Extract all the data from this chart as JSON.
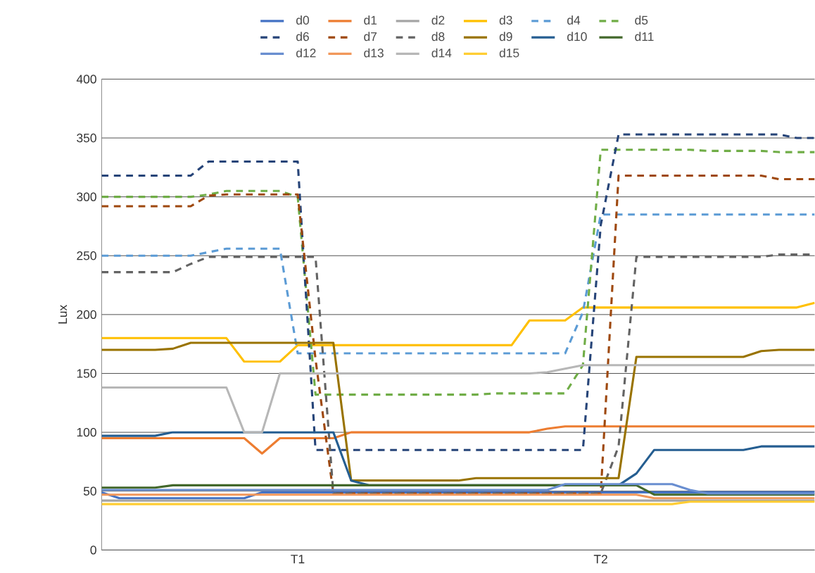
{
  "chart_data": {
    "type": "line",
    "ylabel": "Lux",
    "categories": [
      null,
      null,
      null,
      null,
      null,
      null,
      null,
      null,
      null,
      null,
      null,
      "T1",
      null,
      null,
      null,
      null,
      null,
      null,
      null,
      null,
      null,
      null,
      null,
      null,
      null,
      null,
      null,
      null,
      "T2",
      null,
      null,
      null,
      null,
      null,
      null,
      null,
      null,
      null,
      null,
      null,
      null
    ],
    "ylim": [
      0,
      400
    ],
    "yticks": [
      0,
      50,
      100,
      150,
      200,
      250,
      300,
      350,
      400
    ],
    "grid": "y",
    "legend": "top",
    "marker": "none",
    "series": [
      {
        "name": "d0",
        "color": "#4472c4",
        "line_style": "solid",
        "values": [
          49,
          44,
          44,
          44,
          44,
          44,
          44,
          44,
          44,
          49,
          49,
          49,
          49,
          49,
          49,
          49,
          49,
          49,
          49,
          49,
          49,
          49,
          49,
          49,
          49,
          49,
          49,
          49,
          49,
          49,
          49,
          49,
          49,
          49,
          49,
          49,
          49,
          49,
          49,
          49,
          49
        ]
      },
      {
        "name": "d1",
        "color": "#ed7d31",
        "line_style": "solid",
        "values": [
          95,
          95,
          95,
          95,
          95,
          95,
          95,
          95,
          95,
          82,
          95,
          95,
          95,
          95,
          100,
          100,
          100,
          100,
          100,
          100,
          100,
          100,
          100,
          100,
          100,
          103,
          105,
          105,
          105,
          105,
          105,
          105,
          105,
          105,
          105,
          105,
          105,
          105,
          105,
          105,
          105
        ]
      },
      {
        "name": "d2",
        "color": "#a5a5a5",
        "line_style": "solid",
        "values": [
          42,
          42,
          42,
          42,
          42,
          42,
          42,
          42,
          42,
          42,
          42,
          42,
          42,
          42,
          42,
          42,
          42,
          42,
          42,
          42,
          42,
          42,
          42,
          42,
          42,
          42,
          42,
          42,
          42,
          42,
          42,
          42,
          42,
          42,
          42,
          42,
          42,
          42,
          42,
          42,
          42
        ]
      },
      {
        "name": "d3",
        "color": "#ffc000",
        "line_style": "solid",
        "values": [
          180,
          180,
          180,
          180,
          180,
          180,
          180,
          180,
          160,
          160,
          160,
          174,
          174,
          174,
          174,
          174,
          174,
          174,
          174,
          174,
          174,
          174,
          174,
          174,
          195,
          195,
          195,
          206,
          206,
          206,
          206,
          206,
          206,
          206,
          206,
          206,
          206,
          206,
          206,
          206,
          210
        ]
      },
      {
        "name": "d4",
        "color": "#5b9bd5",
        "line_style": "dashed",
        "values": [
          250,
          250,
          250,
          250,
          250,
          250,
          253,
          256,
          256,
          256,
          256,
          167,
          167,
          167,
          167,
          167,
          167,
          167,
          167,
          167,
          167,
          167,
          167,
          167,
          167,
          167,
          167,
          202,
          285,
          285,
          285,
          285,
          285,
          285,
          285,
          285,
          285,
          285,
          285,
          285,
          285
        ]
      },
      {
        "name": "d5",
        "color": "#70ad47",
        "line_style": "dashed",
        "values": [
          300,
          300,
          300,
          300,
          300,
          300,
          302,
          305,
          305,
          305,
          305,
          300,
          132,
          132,
          132,
          132,
          132,
          132,
          132,
          132,
          132,
          132,
          133,
          133,
          133,
          133,
          133,
          157,
          340,
          340,
          340,
          340,
          340,
          340,
          339,
          339,
          339,
          339,
          338,
          338,
          338
        ]
      },
      {
        "name": "d6",
        "color": "#264478",
        "line_style": "dashed",
        "values": [
          318,
          318,
          318,
          318,
          318,
          318,
          330,
          330,
          330,
          330,
          330,
          330,
          85,
          85,
          85,
          85,
          85,
          85,
          85,
          85,
          85,
          85,
          85,
          85,
          85,
          85,
          85,
          85,
          276,
          353,
          353,
          353,
          353,
          353,
          353,
          353,
          353,
          353,
          353,
          350,
          350
        ]
      },
      {
        "name": "d7",
        "color": "#9e480e",
        "line_style": "dashed",
        "values": [
          292,
          292,
          292,
          292,
          292,
          292,
          301,
          302,
          302,
          302,
          302,
          302,
          162,
          48,
          48,
          48,
          48,
          48,
          48,
          48,
          48,
          48,
          48,
          48,
          48,
          48,
          48,
          48,
          48,
          318,
          318,
          318,
          318,
          318,
          318,
          318,
          318,
          318,
          315,
          315,
          315
        ]
      },
      {
        "name": "d8",
        "color": "#636363",
        "line_style": "dashed",
        "values": [
          236,
          236,
          236,
          236,
          236,
          243,
          249,
          249,
          249,
          249,
          249,
          249,
          249,
          48,
          48,
          48,
          48,
          48,
          48,
          48,
          48,
          48,
          48,
          48,
          48,
          48,
          48,
          48,
          48,
          88,
          249,
          249,
          249,
          249,
          249,
          249,
          249,
          249,
          251,
          251,
          251
        ]
      },
      {
        "name": "d9",
        "color": "#997300",
        "line_style": "solid",
        "values": [
          170,
          170,
          170,
          170,
          171,
          176,
          176,
          176,
          176,
          176,
          176,
          176,
          176,
          176,
          59,
          59,
          59,
          59,
          59,
          59,
          59,
          61,
          61,
          61,
          61,
          61,
          61,
          61,
          61,
          61,
          164,
          164,
          164,
          164,
          164,
          164,
          164,
          169,
          170,
          170,
          170
        ]
      },
      {
        "name": "d10",
        "color": "#255e91",
        "line_style": "solid",
        "values": [
          97,
          97,
          97,
          97,
          100,
          100,
          100,
          100,
          100,
          100,
          100,
          100,
          100,
          100,
          59,
          55,
          55,
          55,
          55,
          55,
          55,
          55,
          55,
          55,
          55,
          55,
          55,
          55,
          55,
          55,
          65,
          85,
          85,
          85,
          85,
          85,
          85,
          88,
          88,
          88,
          88
        ]
      },
      {
        "name": "d11",
        "color": "#43682b",
        "line_style": "solid",
        "values": [
          53,
          53,
          53,
          53,
          55,
          55,
          55,
          55,
          55,
          55,
          55,
          55,
          55,
          55,
          55,
          55,
          55,
          55,
          55,
          55,
          55,
          55,
          55,
          55,
          55,
          55,
          55,
          55,
          55,
          55,
          55,
          47,
          47,
          47,
          47,
          47,
          47,
          47,
          47,
          47,
          47
        ]
      },
      {
        "name": "d12",
        "color": "#698ed0",
        "line_style": "solid",
        "values": [
          51,
          51,
          51,
          51,
          51,
          51,
          51,
          51,
          51,
          51,
          51,
          51,
          51,
          51,
          51,
          51,
          51,
          51,
          51,
          51,
          51,
          51,
          51,
          51,
          51,
          51,
          56,
          56,
          56,
          56,
          56,
          56,
          56,
          51,
          48,
          48,
          48,
          48,
          48,
          48,
          48
        ]
      },
      {
        "name": "d13",
        "color": "#f1975a",
        "line_style": "solid",
        "values": [
          47,
          47,
          47,
          47,
          47,
          47,
          47,
          47,
          47,
          47,
          47,
          47,
          47,
          47,
          47,
          47,
          47,
          47,
          47,
          47,
          47,
          47,
          47,
          47,
          47,
          47,
          47,
          47,
          47,
          47,
          47,
          44,
          44,
          44,
          44,
          44,
          44,
          44,
          44,
          44,
          44
        ]
      },
      {
        "name": "d14",
        "color": "#b7b7b7",
        "line_style": "solid",
        "values": [
          138,
          138,
          138,
          138,
          138,
          138,
          138,
          138,
          100,
          100,
          150,
          150,
          150,
          150,
          150,
          150,
          150,
          150,
          150,
          150,
          150,
          150,
          150,
          150,
          150,
          151,
          154,
          157,
          157,
          157,
          157,
          157,
          157,
          157,
          157,
          157,
          157,
          157,
          157,
          157,
          157
        ]
      },
      {
        "name": "d15",
        "color": "#ffcd33",
        "line_style": "solid",
        "values": [
          39,
          39,
          39,
          39,
          39,
          39,
          39,
          39,
          39,
          39,
          39,
          39,
          39,
          39,
          39,
          39,
          39,
          39,
          39,
          39,
          39,
          39,
          39,
          39,
          39,
          39,
          39,
          39,
          39,
          39,
          39,
          39,
          39,
          41,
          41,
          41,
          41,
          41,
          41,
          41,
          41
        ]
      }
    ]
  }
}
